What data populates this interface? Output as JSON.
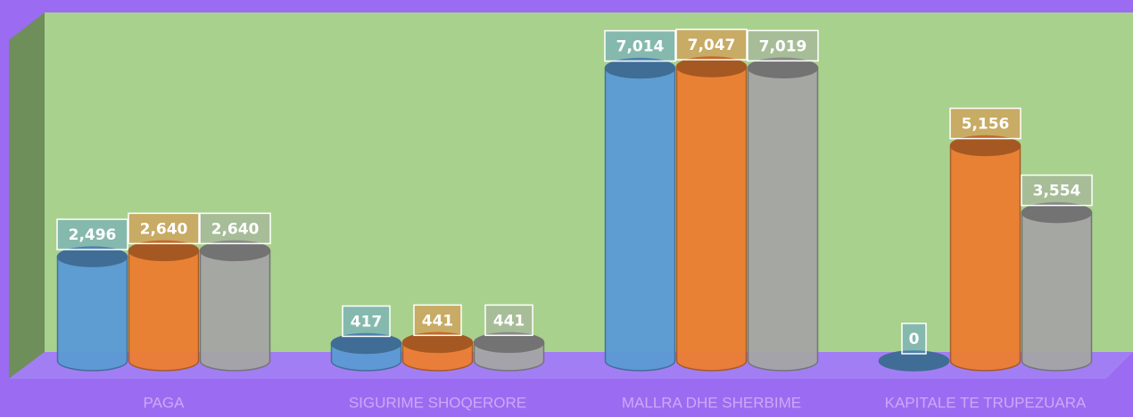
{
  "chart_data": {
    "type": "bar",
    "categories": [
      "PAGA",
      "SIGURIME SHOQERORE",
      "MALLRA DHE SHERBIME",
      "KAPITALE TE TRUPEZUARA"
    ],
    "series": [
      {
        "color": "#5b9bd5",
        "values": [
          2496,
          417,
          7014,
          0
        ],
        "value_labels": [
          "2,496",
          "417",
          "7,014",
          "0"
        ]
      },
      {
        "color": "#ed7d31",
        "values": [
          2640,
          441,
          7047,
          5156
        ],
        "value_labels": [
          "2,640",
          "441",
          "7,047",
          "5,156"
        ]
      },
      {
        "color": "#a5a5a5",
        "values": [
          2640,
          441,
          7019,
          3554
        ],
        "value_labels": [
          "2,640",
          "441",
          "7,019",
          "3,554"
        ]
      }
    ]
  }
}
